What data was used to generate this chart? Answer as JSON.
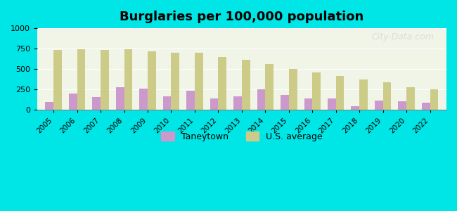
{
  "title": "Burglaries per 100,000 population",
  "years": [
    2005,
    2006,
    2007,
    2008,
    2009,
    2010,
    2011,
    2012,
    2013,
    2014,
    2015,
    2016,
    2017,
    2018,
    2019,
    2020,
    2022
  ],
  "taneytown": [
    100,
    200,
    160,
    275,
    260,
    170,
    235,
    145,
    170,
    250,
    185,
    140,
    145,
    45,
    115,
    110,
    90
  ],
  "us_average": [
    735,
    740,
    735,
    740,
    715,
    700,
    700,
    650,
    610,
    560,
    500,
    455,
    420,
    370,
    340,
    280,
    255
  ],
  "taneytown_color": "#cc99cc",
  "us_avg_color": "#cccc88",
  "background_outer": "#00e5e5",
  "background_plot": "#f0f5e8",
  "ylim": [
    0,
    1000
  ],
  "yticks": [
    0,
    250,
    500,
    750,
    1000
  ],
  "watermark": "City-Data.com",
  "legend_taneytown": "Taneytown",
  "legend_us": "U.S. average"
}
